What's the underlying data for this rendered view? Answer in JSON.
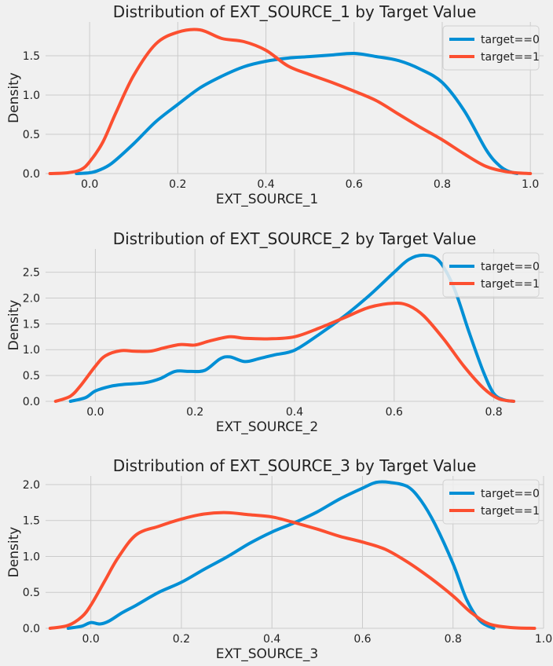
{
  "colors": {
    "target0": "#008fd5",
    "target1": "#fc4f30",
    "background": "#f0f0f0",
    "grid": "#cbcbcb"
  },
  "chart_data": [
    {
      "type": "line",
      "title": "Distribution of EXT_SOURCE_1 by Target Value",
      "xlabel": "EXT_SOURCE_1",
      "ylabel": "Density",
      "xlim": [
        -0.1,
        1.03
      ],
      "ylim": [
        0,
        1.93
      ],
      "xticks": [
        0.0,
        0.2,
        0.4,
        0.6,
        0.8,
        1.0
      ],
      "xtick_labels": [
        "0.0",
        "0.2",
        "0.4",
        "0.6",
        "0.8",
        "1.0"
      ],
      "yticks": [
        0.0,
        0.5,
        1.0,
        1.5
      ],
      "ytick_labels": [
        "0.0",
        "0.5",
        "1.0",
        "1.5"
      ],
      "grid": true,
      "legend": "top-right",
      "series": [
        {
          "name": "target==0",
          "color": "#008fd5",
          "x": [
            -0.03,
            0.0,
            0.02,
            0.05,
            0.1,
            0.15,
            0.2,
            0.25,
            0.3,
            0.35,
            0.4,
            0.45,
            0.5,
            0.55,
            0.6,
            0.65,
            0.7,
            0.75,
            0.8,
            0.85,
            0.9,
            0.93,
            0.95,
            0.97
          ],
          "y": [
            0.0,
            0.01,
            0.04,
            0.13,
            0.38,
            0.66,
            0.88,
            1.09,
            1.24,
            1.36,
            1.43,
            1.47,
            1.49,
            1.51,
            1.53,
            1.49,
            1.44,
            1.33,
            1.16,
            0.8,
            0.3,
            0.1,
            0.03,
            0.0
          ]
        },
        {
          "name": "target==1",
          "color": "#fc4f30",
          "x": [
            -0.09,
            -0.05,
            -0.02,
            0.0,
            0.03,
            0.06,
            0.1,
            0.15,
            0.2,
            0.25,
            0.3,
            0.35,
            0.4,
            0.45,
            0.5,
            0.55,
            0.6,
            0.65,
            0.7,
            0.75,
            0.8,
            0.85,
            0.9,
            0.95,
            1.0
          ],
          "y": [
            0.0,
            0.01,
            0.05,
            0.15,
            0.4,
            0.78,
            1.25,
            1.65,
            1.8,
            1.83,
            1.72,
            1.68,
            1.57,
            1.37,
            1.26,
            1.16,
            1.05,
            0.93,
            0.76,
            0.59,
            0.43,
            0.25,
            0.09,
            0.02,
            0.0
          ]
        }
      ]
    },
    {
      "type": "line",
      "title": "Distribution of EXT_SOURCE_2 by Target Value",
      "xlabel": "EXT_SOURCE_2",
      "ylabel": "Density",
      "xlim": [
        -0.1,
        0.9
      ],
      "ylim": [
        0,
        2.95
      ],
      "xticks": [
        0.0,
        0.2,
        0.4,
        0.6,
        0.8
      ],
      "xtick_labels": [
        "0.0",
        "0.2",
        "0.4",
        "0.6",
        "0.8"
      ],
      "yticks": [
        0.0,
        0.5,
        1.0,
        1.5,
        2.0,
        2.5
      ],
      "ytick_labels": [
        "0.0",
        "0.5",
        "1.0",
        "1.5",
        "2.0",
        "2.5"
      ],
      "grid": true,
      "legend": "top-right",
      "series": [
        {
          "name": "target==0",
          "color": "#008fd5",
          "x": [
            -0.05,
            -0.02,
            0.0,
            0.03,
            0.06,
            0.1,
            0.13,
            0.16,
            0.19,
            0.22,
            0.25,
            0.27,
            0.3,
            0.33,
            0.36,
            0.4,
            0.45,
            0.5,
            0.55,
            0.6,
            0.63,
            0.66,
            0.69,
            0.72,
            0.75,
            0.78,
            0.8,
            0.82,
            0.84
          ],
          "y": [
            0.0,
            0.07,
            0.2,
            0.29,
            0.33,
            0.36,
            0.44,
            0.58,
            0.58,
            0.6,
            0.82,
            0.86,
            0.77,
            0.83,
            0.9,
            0.99,
            1.3,
            1.65,
            2.05,
            2.5,
            2.75,
            2.83,
            2.72,
            2.2,
            1.35,
            0.55,
            0.15,
            0.03,
            0.0
          ]
        },
        {
          "name": "target==1",
          "color": "#fc4f30",
          "x": [
            -0.08,
            -0.05,
            -0.03,
            0.0,
            0.02,
            0.05,
            0.08,
            0.11,
            0.14,
            0.17,
            0.2,
            0.23,
            0.27,
            0.3,
            0.35,
            0.4,
            0.45,
            0.5,
            0.55,
            0.6,
            0.63,
            0.66,
            0.7,
            0.74,
            0.78,
            0.81,
            0.84
          ],
          "y": [
            0.0,
            0.1,
            0.3,
            0.68,
            0.88,
            0.98,
            0.97,
            0.97,
            1.04,
            1.1,
            1.09,
            1.17,
            1.25,
            1.22,
            1.21,
            1.25,
            1.42,
            1.62,
            1.82,
            1.9,
            1.85,
            1.65,
            1.2,
            0.68,
            0.25,
            0.05,
            0.0
          ]
        }
      ]
    },
    {
      "type": "line",
      "title": "Distribution of EXT_SOURCE_3 by Target Value",
      "xlabel": "EXT_SOURCE_3",
      "ylabel": "Density",
      "xlim": [
        -0.1,
        1.0
      ],
      "ylim": [
        0,
        2.12
      ],
      "xticks": [
        0.0,
        0.2,
        0.4,
        0.6,
        0.8,
        1.0
      ],
      "xtick_labels": [
        "0.0",
        "0.2",
        "0.4",
        "0.6",
        "0.8",
        "1.0"
      ],
      "yticks": [
        0.0,
        0.5,
        1.0,
        1.5,
        2.0
      ],
      "ytick_labels": [
        "0.0",
        "0.5",
        "1.0",
        "1.5",
        "2.0"
      ],
      "grid": true,
      "legend": "top-right",
      "series": [
        {
          "name": "target==0",
          "color": "#008fd5",
          "x": [
            -0.05,
            -0.02,
            0.0,
            0.02,
            0.04,
            0.07,
            0.1,
            0.15,
            0.2,
            0.25,
            0.3,
            0.35,
            0.4,
            0.45,
            0.5,
            0.55,
            0.6,
            0.63,
            0.66,
            0.7,
            0.73,
            0.76,
            0.8,
            0.83,
            0.86,
            0.89
          ],
          "y": [
            0.0,
            0.03,
            0.08,
            0.06,
            0.1,
            0.22,
            0.32,
            0.5,
            0.64,
            0.82,
            0.99,
            1.18,
            1.34,
            1.47,
            1.62,
            1.8,
            1.95,
            2.03,
            2.03,
            1.97,
            1.77,
            1.45,
            0.9,
            0.4,
            0.1,
            0.0
          ]
        },
        {
          "name": "target==1",
          "color": "#fc4f30",
          "x": [
            -0.09,
            -0.05,
            -0.02,
            0.0,
            0.03,
            0.06,
            0.1,
            0.15,
            0.2,
            0.25,
            0.3,
            0.35,
            0.4,
            0.45,
            0.5,
            0.55,
            0.6,
            0.65,
            0.7,
            0.75,
            0.8,
            0.84,
            0.88,
            0.93,
            0.98
          ],
          "y": [
            0.0,
            0.04,
            0.16,
            0.32,
            0.65,
            0.98,
            1.3,
            1.42,
            1.52,
            1.59,
            1.61,
            1.58,
            1.55,
            1.47,
            1.38,
            1.28,
            1.2,
            1.1,
            0.92,
            0.7,
            0.45,
            0.22,
            0.06,
            0.01,
            0.0
          ]
        }
      ]
    }
  ]
}
